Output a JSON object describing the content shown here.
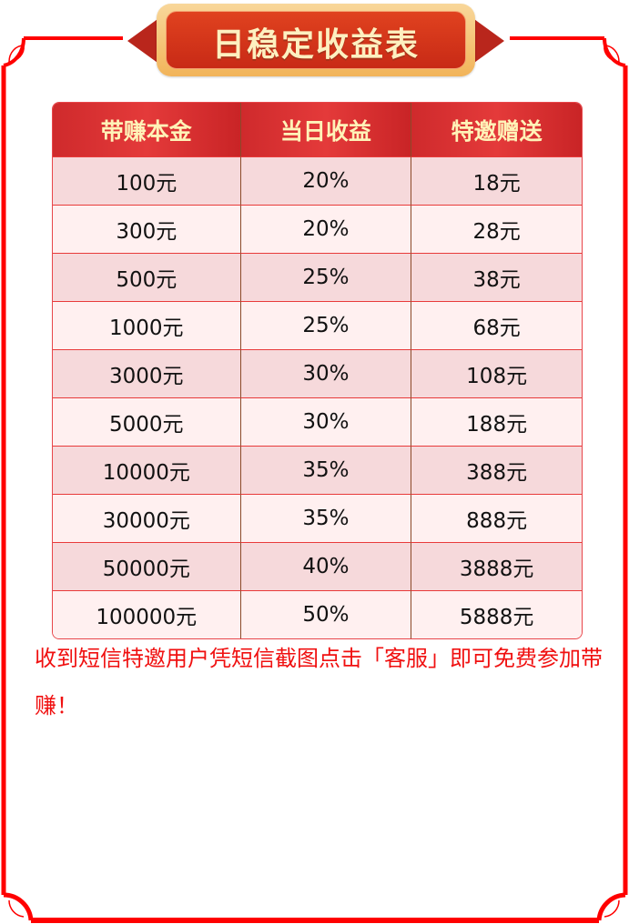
{
  "title": "日稳定收益表",
  "table": {
    "headers": [
      "带赚本金",
      "当日收益",
      "特邀赠送"
    ],
    "rows": [
      [
        "100元",
        "20%",
        "18元"
      ],
      [
        "300元",
        "20%",
        "28元"
      ],
      [
        "500元",
        "25%",
        "38元"
      ],
      [
        "1000元",
        "25%",
        "68元"
      ],
      [
        "3000元",
        "30%",
        "108元"
      ],
      [
        "5000元",
        "30%",
        "188元"
      ],
      [
        "10000元",
        "35%",
        "388元"
      ],
      [
        "30000元",
        "35%",
        "888元"
      ],
      [
        "50000元",
        "40%",
        "3888元"
      ],
      [
        "100000元",
        "50%",
        "5888元"
      ]
    ]
  },
  "note": "收到短信特邀用户凭短信截图点击「客服」即可免费参加带赚！",
  "colors": {
    "frame": "#ff0000",
    "header": "#d8302f",
    "row_odd": "#f6d9db",
    "row_even": "#fff0f0",
    "note": "#f01010"
  }
}
